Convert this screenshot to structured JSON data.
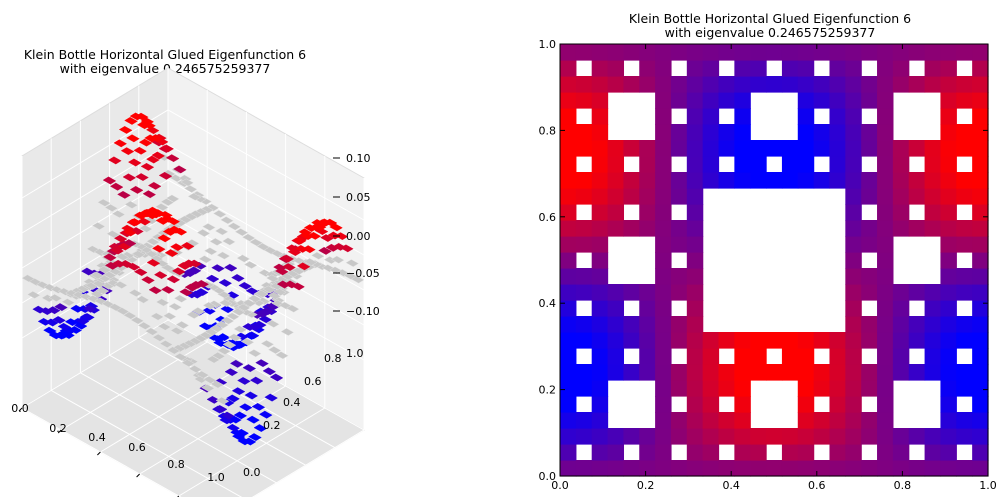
{
  "chart_data": [
    {
      "type": "surface3d",
      "title_line1": "Klein Bottle Horizontal Glued Eigenfunction 6",
      "title_line2": "with eigenvalue 0.246575259377",
      "x_ticks": [
        "0.0",
        "0.2",
        "0.4",
        "0.6",
        "0.8",
        "1.0"
      ],
      "y_ticks": [
        "0.0",
        "0.2",
        "0.4",
        "0.6",
        "0.8",
        "1.0"
      ],
      "z_ticks": [
        "0.10",
        "0.05",
        "0.00",
        "−0.05",
        "−0.10"
      ],
      "xlim": [
        0,
        1
      ],
      "ylim": [
        0,
        1
      ],
      "zlim": [
        -0.13,
        0.13
      ],
      "colormap": [
        "#0000ff",
        "#800080",
        "#ff0000"
      ],
      "grid": true
    },
    {
      "type": "heatmap",
      "title_line1": "Klein Bottle Horizontal Glued Eigenfunction 6",
      "title_line2": "with eigenvalue 0.246575259377",
      "x_ticks": [
        "0.0",
        "0.2",
        "0.4",
        "0.6",
        "0.8",
        "1.0"
      ],
      "y_ticks": [
        "0.0",
        "0.2",
        "0.4",
        "0.6",
        "0.8",
        "1.0"
      ],
      "xlim": [
        0,
        1
      ],
      "ylim": [
        0,
        1
      ],
      "domain": "Sierpinski carpet (level 3)",
      "colormap": [
        "#0000ff",
        "#800080",
        "#ff0000"
      ]
    }
  ]
}
